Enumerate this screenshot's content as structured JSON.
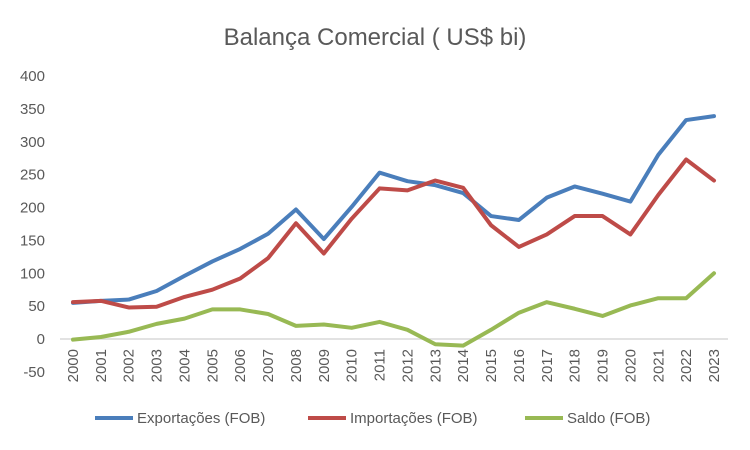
{
  "chart_data": {
    "type": "line",
    "title": "Balança Comercial ( US$ bi)",
    "xlabel": "",
    "ylabel": "",
    "ylim": [
      -50,
      400
    ],
    "yticks": [
      -50,
      0,
      50,
      100,
      150,
      200,
      250,
      300,
      350,
      400
    ],
    "grid": false,
    "legend_position": "bottom",
    "x": [
      "2000",
      "2001",
      "2002",
      "2003",
      "2004",
      "2005",
      "2006",
      "2007",
      "2008",
      "2009",
      "2010",
      "2011",
      "2012",
      "2013",
      "2014",
      "2015",
      "2016",
      "2017",
      "2018",
      "2019",
      "2020",
      "2021",
      "2022",
      "2023"
    ],
    "series": [
      {
        "name": "Exportações (FOB)",
        "color": "#4a7ebb",
        "values": [
          55,
          58,
          60,
          73,
          96,
          118,
          137,
          160,
          197,
          152,
          201,
          253,
          240,
          234,
          222,
          187,
          181,
          215,
          232,
          221,
          209,
          280,
          333,
          339
        ]
      },
      {
        "name": "Importações (FOB)",
        "color": "#be4b48",
        "values": [
          56,
          58,
          48,
          49,
          64,
          75,
          92,
          123,
          176,
          130,
          183,
          229,
          226,
          241,
          230,
          173,
          140,
          159,
          187,
          187,
          159,
          219,
          273,
          241
        ]
      },
      {
        "name": "Saldo (FOB)",
        "color": "#98b954",
        "values": [
          -1,
          3,
          11,
          23,
          31,
          45,
          45,
          38,
          20,
          22,
          17,
          26,
          14,
          -8,
          -10,
          14,
          40,
          56,
          46,
          35,
          51,
          62,
          62,
          100
        ]
      }
    ]
  }
}
